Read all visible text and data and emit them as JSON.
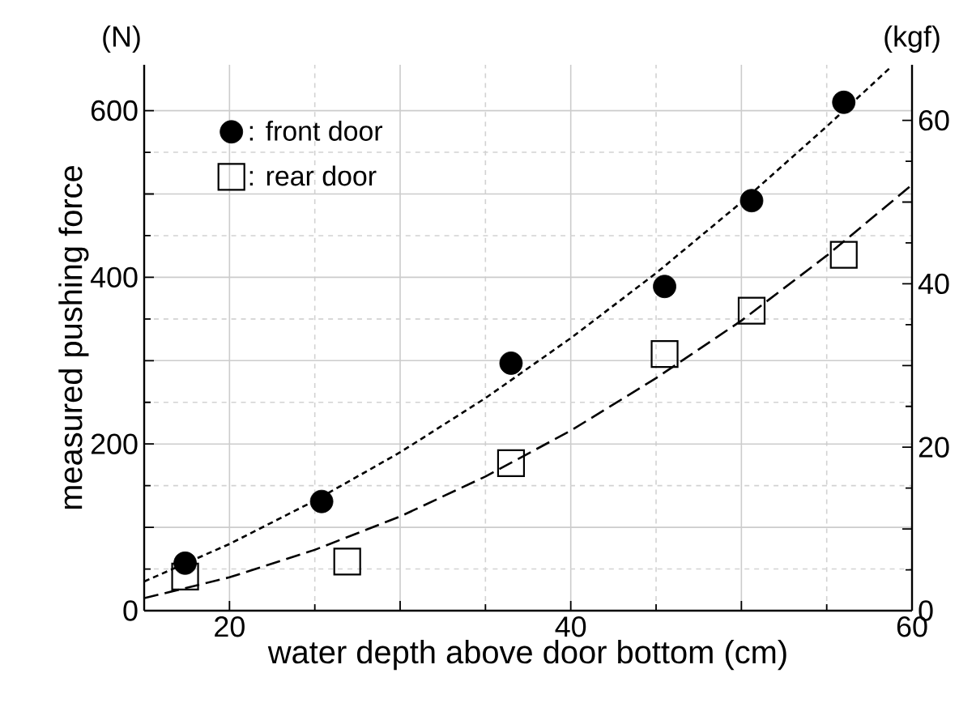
{
  "chart_data": {
    "type": "scatter",
    "xlabel": "water depth above door bottom (cm)",
    "ylabel": "measured pushing force",
    "y2label": "(kgf)",
    "annotations": [
      "(N)"
    ],
    "xlim": [
      15,
      60
    ],
    "xticks": [
      20,
      {
        "value": 30,
        "label": null
      },
      40,
      {
        "value": 50,
        "label": null
      },
      60
    ],
    "ylim": [
      0,
      655
    ],
    "yticks": [
      0,
      {
        "value": 100,
        "label": null
      },
      200,
      {
        "value": 300,
        "label": null
      },
      400,
      {
        "value": 500,
        "label": null
      },
      600
    ],
    "y2lim": [
      0,
      66.8
    ],
    "y2ticks": [
      0,
      {
        "value": 10,
        "label": null
      },
      20,
      {
        "value": 30,
        "label": null
      },
      40,
      {
        "value": 50,
        "label": null
      },
      60
    ],
    "grid": true,
    "legend": "top left",
    "series": [
      {
        "name": ": front door",
        "marker": "circle",
        "color": "#000000",
        "x": [
          17.4,
          25.4,
          36.5,
          45.5,
          50.6,
          56.0
        ],
        "values": [
          57,
          131,
          297,
          389,
          492,
          610
        ]
      },
      {
        "name": ": rear door",
        "marker": "square",
        "color": "#000000",
        "x": [
          17.4,
          26.9,
          36.5,
          45.5,
          50.6,
          56.0
        ],
        "values": [
          41,
          59,
          177,
          308,
          360,
          427
        ]
      },
      {
        "type": "line",
        "line_style": "dotted",
        "color": "#000000",
        "x": [
          15,
          20,
          25,
          30,
          35,
          40,
          45,
          50,
          55,
          58.8
        ],
        "values": [
          35,
          80,
          132,
          190,
          255,
          327,
          405,
          490,
          581,
          653
        ]
      },
      {
        "type": "line",
        "line_style": "dashed",
        "color": "#000000",
        "x": [
          15,
          20,
          25,
          30,
          35,
          40,
          45,
          50,
          55,
          60
        ],
        "values": [
          15,
          40,
          73,
          113,
          161,
          216,
          279,
          348,
          426,
          511
        ]
      }
    ]
  }
}
